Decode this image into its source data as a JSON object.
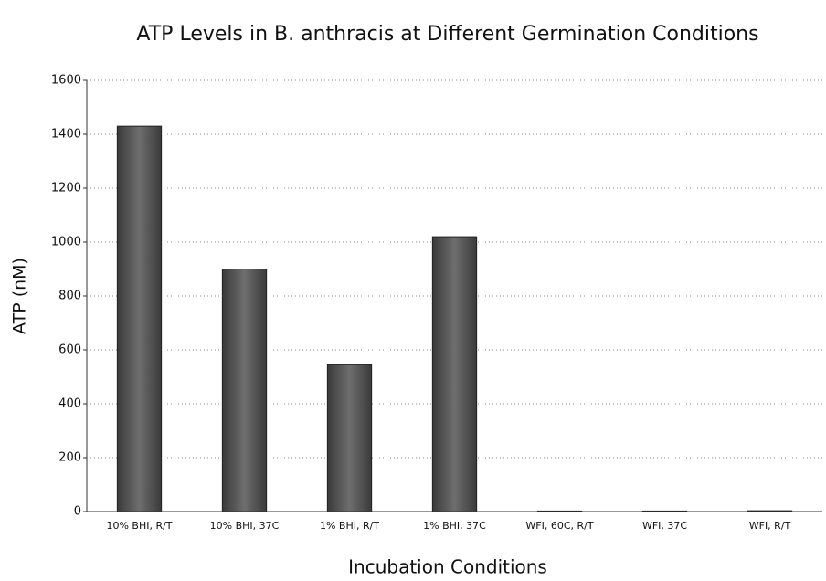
{
  "chart_data": {
    "type": "bar",
    "title": "ATP Levels in B. anthracis at Different Germination Conditions",
    "x_label": "Incubation Conditions",
    "y_label": "ATP (nM)",
    "categories": [
      "10% BHI, R/T",
      "10% BHI, 37C",
      "1% BHI, R/T",
      "1% BHI, 37C",
      "WFI, 60C, R/T",
      "WFI, 37C",
      "WFI, R/T"
    ],
    "values": [
      1430,
      900,
      545,
      1020,
      2,
      2,
      3
    ],
    "color": "#5a5a5a",
    "ylim": [
      0,
      1600
    ],
    "yticks": [
      0,
      200,
      400,
      600,
      800,
      1000,
      1200,
      1400,
      1600
    ],
    "grid": true
  }
}
